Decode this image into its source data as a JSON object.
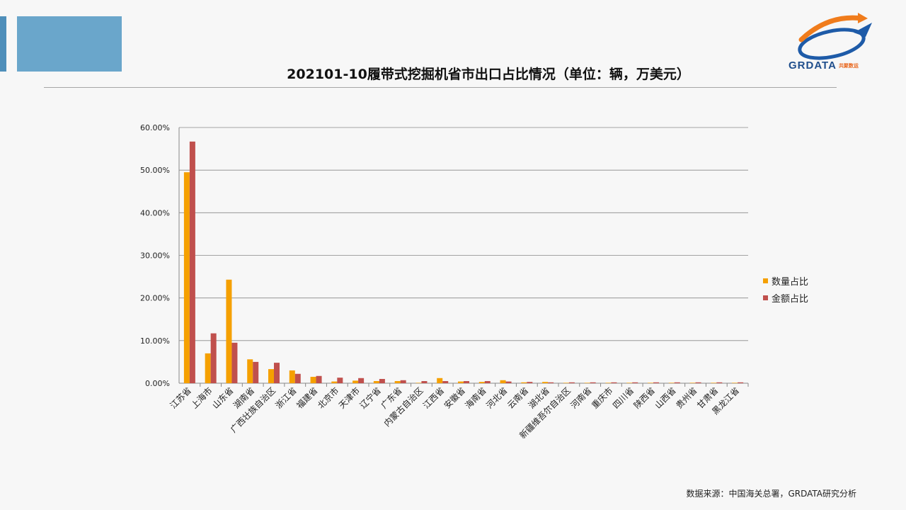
{
  "page": {
    "title": "202101-10履带式挖掘机省市出口占比情况（单位：辆，万美元）",
    "source": "数据来源：中国海关总署，GRDATA研究分析"
  },
  "logo": {
    "name": "GRDATA",
    "subtitle": "共聚数运"
  },
  "colors": {
    "deco_strip": "#4f8fba",
    "deco_block": "#6aa6cb",
    "quantity": "#f5a000",
    "amount": "#c0504d",
    "grid": "#888888",
    "logo_text": "#1f4e8c",
    "logo_orange": "#f07c1c",
    "logo_blue": "#1e5ba8"
  },
  "chart_data": {
    "type": "bar",
    "title": "202101-10履带式挖掘机省市出口占比情况（单位：辆，万美元）",
    "xlabel": "",
    "ylabel": "",
    "ylim": [
      0,
      60
    ],
    "y_ticks": [
      "0.00%",
      "10.00%",
      "20.00%",
      "30.00%",
      "40.00%",
      "50.00%",
      "60.00%"
    ],
    "grid": true,
    "legend_position": "right",
    "categories": [
      "江苏省",
      "上海市",
      "山东省",
      "湖南省",
      "广西壮族自治区",
      "浙江省",
      "福建省",
      "北京市",
      "天津市",
      "辽宁省",
      "广东省",
      "内蒙古自治区",
      "江西省",
      "安徽省",
      "海南省",
      "河北省",
      "云南省",
      "湖北省",
      "新疆维吾尔自治区",
      "河南省",
      "重庆市",
      "四川省",
      "陕西省",
      "山西省",
      "贵州省",
      "甘肃省",
      "黑龙江省"
    ],
    "series": [
      {
        "name": "数量占比",
        "values": [
          49.5,
          7.0,
          24.3,
          5.6,
          3.3,
          3.0,
          1.5,
          0.4,
          0.6,
          0.5,
          0.5,
          0.1,
          1.2,
          0.4,
          0.3,
          0.7,
          0.2,
          0.3,
          0.1,
          0.1,
          0.1,
          0.1,
          0.1,
          0.1,
          0.1,
          0.1,
          0.1
        ]
      },
      {
        "name": "金额占比",
        "values": [
          56.7,
          11.7,
          9.5,
          5.0,
          4.8,
          2.2,
          1.7,
          1.3,
          1.2,
          1.0,
          0.7,
          0.5,
          0.5,
          0.5,
          0.5,
          0.4,
          0.3,
          0.2,
          0.2,
          0.2,
          0.2,
          0.2,
          0.2,
          0.2,
          0.2,
          0.2,
          0.2
        ]
      }
    ]
  }
}
